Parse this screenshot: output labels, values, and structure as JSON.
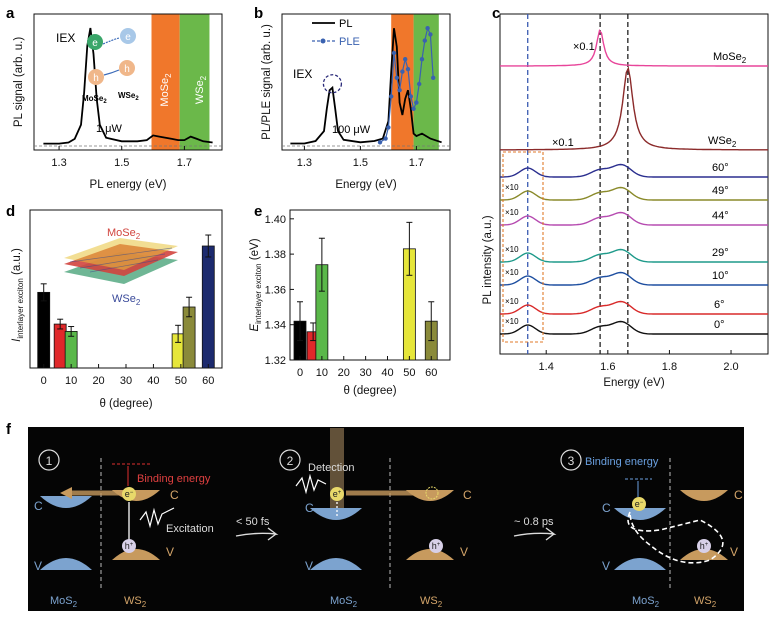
{
  "figure": {
    "panels": {
      "a": "a",
      "b": "b",
      "c": "c",
      "d": "d",
      "e": "e",
      "f": "f"
    }
  },
  "chart_data": [
    {
      "id": "a",
      "type": "line",
      "xlabel": "PL energy (eV)",
      "ylabel": "PL signal (arb. u.)",
      "xlim": [
        1.22,
        1.82
      ],
      "xticks": [
        "1.3",
        "1.5",
        "1.7"
      ],
      "xtick_values": [
        1.3,
        1.5,
        1.7
      ],
      "shaded_bands": [
        {
          "name": "MoSe",
          "sub": "2",
          "from": 1.595,
          "to": 1.685,
          "color": "#f0772b"
        },
        {
          "name": "WSe",
          "sub": "2",
          "from": 1.685,
          "to": 1.78,
          "color": "#6bb84a"
        }
      ],
      "annotations": {
        "peak": "IEX",
        "power": "1 μW",
        "bottom_left": "MoSe",
        "bottom_left_sub": "2",
        "bottom_right": "WSe",
        "bottom_right_sub": "2",
        "electron": "e",
        "hole": "h"
      },
      "series": [
        {
          "values_x": [
            1.25,
            1.3,
            1.33,
            1.35,
            1.37,
            1.38,
            1.39,
            1.4,
            1.41,
            1.42,
            1.43,
            1.45,
            1.5,
            1.55,
            1.58,
            1.6,
            1.62,
            1.64,
            1.66,
            1.68,
            1.7,
            1.72,
            1.74,
            1.76,
            1.79
          ],
          "values_y": [
            0.02,
            0.02,
            0.03,
            0.06,
            0.18,
            0.45,
            0.85,
            1.0,
            0.78,
            0.4,
            0.18,
            0.07,
            0.04,
            0.04,
            0.05,
            0.09,
            0.08,
            0.07,
            0.06,
            0.05,
            0.05,
            0.08,
            0.06,
            0.04,
            0.03
          ]
        }
      ]
    },
    {
      "id": "b",
      "type": "line",
      "xlabel": "Energy (eV)",
      "ylabel": "PL/PLE signal (arb. u.)",
      "xlim": [
        1.22,
        1.82
      ],
      "xticks": [
        "1.3",
        "1.5",
        "1.7"
      ],
      "xtick_values": [
        1.3,
        1.5,
        1.7
      ],
      "shaded_bands": [
        {
          "from": 1.61,
          "to": 1.69,
          "color": "#f0772b"
        },
        {
          "from": 1.69,
          "to": 1.78,
          "color": "#6bb84a"
        }
      ],
      "annotations": {
        "peak": "IEX",
        "power": "100 μW"
      },
      "legend": [
        "PL",
        "PLE"
      ],
      "series": [
        {
          "name": "PL",
          "values_x": [
            1.25,
            1.3,
            1.34,
            1.37,
            1.38,
            1.39,
            1.4,
            1.41,
            1.42,
            1.44,
            1.5,
            1.55,
            1.58,
            1.6,
            1.61,
            1.62,
            1.63,
            1.64,
            1.65,
            1.66,
            1.67,
            1.68,
            1.69,
            1.7,
            1.72,
            1.75,
            1.79
          ],
          "values_y": [
            0.02,
            0.02,
            0.04,
            0.12,
            0.3,
            0.45,
            0.47,
            0.3,
            0.12,
            0.05,
            0.03,
            0.04,
            0.06,
            0.2,
            0.6,
            0.95,
            0.8,
            0.35,
            0.25,
            0.38,
            0.45,
            0.3,
            0.1,
            0.08,
            0.1,
            0.06,
            0.03
          ]
        },
        {
          "name": "PLE",
          "values_x": [
            1.57,
            1.59,
            1.6,
            1.61,
            1.62,
            1.63,
            1.64,
            1.65,
            1.66,
            1.67,
            1.68,
            1.69,
            1.7,
            1.71,
            1.72,
            1.73,
            1.74,
            1.75,
            1.76
          ],
          "values_y": [
            0.03,
            0.06,
            0.15,
            0.4,
            0.75,
            0.55,
            0.45,
            0.6,
            0.7,
            0.62,
            0.4,
            0.3,
            0.35,
            0.5,
            0.7,
            0.85,
            0.95,
            0.9,
            0.55
          ]
        }
      ]
    },
    {
      "id": "c",
      "type": "line",
      "xlabel": "Energy (eV)",
      "ylabel": "PL intensity (a.u.)",
      "xlim": [
        1.25,
        2.12
      ],
      "xticks": [
        "1.4",
        "1.6",
        "1.8",
        "2.0"
      ],
      "xtick_values": [
        1.4,
        1.6,
        1.8,
        2.0
      ],
      "dashed_lines_x": [
        1.34,
        1.575,
        1.665
      ],
      "labels": {
        "scale1": "×0.1",
        "scale2": "×0.1",
        "x10": "×10"
      },
      "series": [
        {
          "name": "MoSe",
          "sub": "2",
          "color": "#e8459a",
          "peak": 1.575,
          "amp": 1.0,
          "width": 0.02
        },
        {
          "name": "WSe",
          "sub": "2",
          "color": "#8b2a2a",
          "peak": 1.665,
          "amp": 1.0,
          "width": 0.025
        },
        {
          "name": "60°",
          "color": "#2b2f8f"
        },
        {
          "name": "49°",
          "color": "#8a8a2a"
        },
        {
          "name": "44°",
          "color": "#b64bb0"
        },
        {
          "name": "29°",
          "color": "#1e9a8a"
        },
        {
          "name": "10°",
          "color": "#1e4fa0"
        },
        {
          "name": "6°",
          "color": "#d82a2a"
        },
        {
          "name": "0°",
          "color": "#111111"
        }
      ]
    },
    {
      "id": "d",
      "type": "bar",
      "xlabel": "θ (degree)",
      "ylabel": "I",
      "ylabel_sub": "interlayer exciton",
      "ylabel_unit": " (a.u.)",
      "xlim": [
        -5,
        65
      ],
      "xticks": [
        "0",
        "10",
        "20",
        "30",
        "40",
        "50",
        "60"
      ],
      "xtick_values": [
        0,
        10,
        20,
        30,
        40,
        50,
        60
      ],
      "inset": {
        "top": "MoSe",
        "top_sub": "2",
        "bottom": "WSe",
        "bottom_sub": "2"
      },
      "bars": [
        {
          "x": 0,
          "value": 0.62,
          "err": 0.07,
          "color": "#000000"
        },
        {
          "x": 6,
          "value": 0.36,
          "err": 0.04,
          "color": "#e0282a"
        },
        {
          "x": 10,
          "value": 0.3,
          "err": 0.04,
          "color": "#5ab84a"
        },
        {
          "x": 49,
          "value": 0.28,
          "err": 0.07,
          "color": "#e6e63a"
        },
        {
          "x": 53,
          "value": 0.5,
          "err": 0.08,
          "color": "#8a8a3a"
        },
        {
          "x": 60,
          "value": 1.0,
          "err": 0.09,
          "color": "#1c2a6e"
        }
      ]
    },
    {
      "id": "e",
      "type": "bar",
      "xlabel": "θ (degree)",
      "ylabel": "E",
      "ylabel_sub": "interlayer exciton",
      "ylabel_unit": " (eV)",
      "ylim": [
        1.32,
        1.405
      ],
      "xticks": [
        "0",
        "10",
        "20",
        "30",
        "40",
        "50",
        "60"
      ],
      "xtick_values": [
        0,
        10,
        20,
        30,
        40,
        50,
        60
      ],
      "yticks": [
        "1.32",
        "1.34",
        "1.36",
        "1.38",
        "1.40"
      ],
      "ytick_values": [
        1.32,
        1.34,
        1.36,
        1.38,
        1.4
      ],
      "bars": [
        {
          "x": 0,
          "value": 1.342,
          "err": 0.011,
          "color": "#000000"
        },
        {
          "x": 6,
          "value": 1.336,
          "err": 0.005,
          "color": "#e0282a"
        },
        {
          "x": 10,
          "value": 1.374,
          "err": 0.015,
          "color": "#5ab84a"
        },
        {
          "x": 50,
          "value": 1.383,
          "err": 0.015,
          "color": "#e6e63a"
        },
        {
          "x": 60,
          "value": 1.342,
          "err": 0.011,
          "color": "#8a8a3a"
        }
      ]
    }
  ],
  "schematic": {
    "steps": [
      {
        "num": "1",
        "binding": "Binding energy",
        "excitation": "Excitation",
        "left_material": "MoS",
        "right_material": "WS",
        "sub": "2"
      },
      {
        "num": "2",
        "detection": "Detection",
        "left_material": "MoS",
        "right_material": "WS",
        "sub": "2"
      },
      {
        "num": "3",
        "binding": "Binding energy",
        "left_material": "MoS",
        "right_material": "WS",
        "sub": "2"
      }
    ],
    "arrow1": "< 50 fs",
    "arrow2": "~ 0.8 ps",
    "band_c": "C",
    "band_v": "V",
    "electron": "e",
    "hole": "h",
    "minus": "−",
    "plus": "+"
  }
}
